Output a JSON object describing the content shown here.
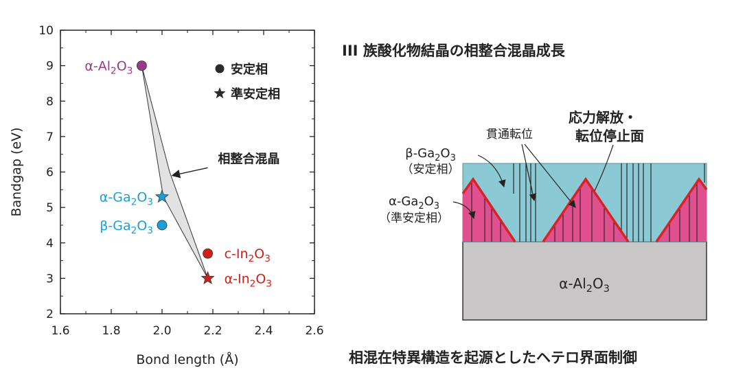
{
  "colors": {
    "alpha_al2o3": "#9b3b87",
    "ga2o3": "#1aa0d6",
    "in2o3": "#d0201a",
    "region_fill": "#e2e2e2",
    "beta_layer": "#8bcad4",
    "alpha_layer": "#e0508f",
    "substrate": "#c8c6c6",
    "interface_line": "#d62424"
  },
  "chart_data": {
    "type": "scatter",
    "xlabel": "Bond length (Å)",
    "ylabel": "Bandgap (eV)",
    "xlim": [
      1.6,
      2.6
    ],
    "ylim": [
      2,
      10
    ],
    "xticks": [
      "1.6",
      "1.8",
      "2.0",
      "2.2",
      "2.4",
      "2.6"
    ],
    "yticks": [
      "2",
      "3",
      "4",
      "5",
      "6",
      "7",
      "8",
      "9",
      "10"
    ],
    "grid": false,
    "legend": {
      "placement": "top-right",
      "entries": [
        {
          "marker": "circle",
          "label": "安定相"
        },
        {
          "marker": "star",
          "label": "準安定相"
        }
      ]
    },
    "points": [
      {
        "label_parts": [
          "α-Al",
          "2",
          "O",
          "3"
        ],
        "x": 1.92,
        "y": 9.0,
        "marker": "circle",
        "color": "#9b3b87",
        "label_side": "left"
      },
      {
        "label_parts": [
          "α-Ga",
          "2",
          "O",
          "3"
        ],
        "x": 2.0,
        "y": 5.3,
        "marker": "star",
        "color": "#1aa0d6",
        "label_side": "left"
      },
      {
        "label_parts": [
          "β-Ga",
          "2",
          "O",
          "3"
        ],
        "x": 2.0,
        "y": 4.5,
        "marker": "circle",
        "color": "#1aa0d6",
        "label_side": "left"
      },
      {
        "label_parts": [
          "c-In",
          "2",
          "O",
          "3"
        ],
        "x": 2.18,
        "y": 3.7,
        "marker": "circle",
        "color": "#d0201a",
        "label_side": "right"
      },
      {
        "label_parts": [
          "α-In",
          "2",
          "O",
          "3"
        ],
        "x": 2.18,
        "y": 3.0,
        "marker": "star",
        "color": "#d0201a",
        "label_side": "right"
      }
    ],
    "region": {
      "polygon": [
        [
          1.92,
          9.0
        ],
        [
          2.005,
          5.3
        ],
        [
          2.18,
          3.0
        ],
        [
          2.03,
          6.0
        ]
      ],
      "annotation": "相整合混晶",
      "arrow_target": [
        2.04,
        5.9
      ]
    }
  },
  "diagram": {
    "title": "III 族酸化物結晶の相整合混晶成長",
    "substrate_label_parts": [
      "α-Al",
      "2",
      "O",
      "3"
    ],
    "beta_label_parts": [
      "β-Ga",
      "2",
      "O",
      "3"
    ],
    "beta_note": "（安定相）",
    "alpha_label_parts": [
      "α-Ga",
      "2",
      "O",
      "3"
    ],
    "alpha_note": "（準安定相）",
    "dislocation_label": "貫通転位",
    "stress_label_1": "応力解放・",
    "stress_label_2": "転位停止面"
  },
  "footer": "相混在特異構造を起源としたヘテロ界面制御"
}
